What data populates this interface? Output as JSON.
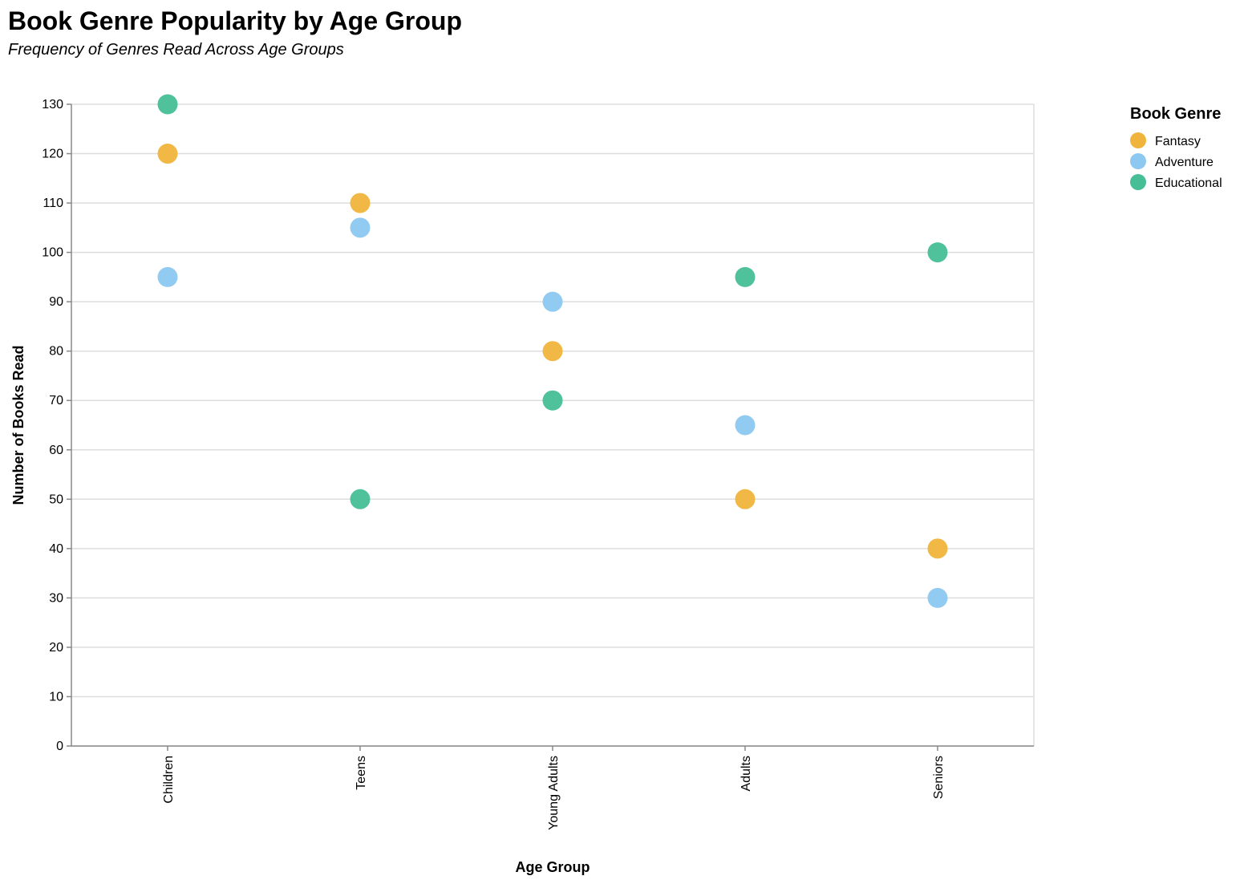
{
  "chart_data": {
    "type": "scatter",
    "title": "Book Genre Popularity by Age Group",
    "subtitle": "Frequency of Genres Read Across Age Groups",
    "xlabel": "Age Group",
    "ylabel": "Number of Books Read",
    "categories": [
      "Children",
      "Teens",
      "Young Adults",
      "Adults",
      "Seniors"
    ],
    "ylim": [
      0,
      130
    ],
    "yticks": [
      0,
      10,
      20,
      30,
      40,
      50,
      60,
      70,
      80,
      90,
      100,
      110,
      120,
      130
    ],
    "grid": true,
    "legend": {
      "title": "Book Genre",
      "position": "top-right"
    },
    "series": [
      {
        "name": "Fantasy",
        "color": "#F0B43C",
        "values": [
          120,
          110,
          80,
          50,
          40
        ]
      },
      {
        "name": "Adventure",
        "color": "#8CC8F0",
        "values": [
          95,
          105,
          90,
          65,
          30
        ]
      },
      {
        "name": "Educational",
        "color": "#46BE96",
        "values": [
          130,
          50,
          70,
          95,
          100
        ]
      }
    ]
  }
}
